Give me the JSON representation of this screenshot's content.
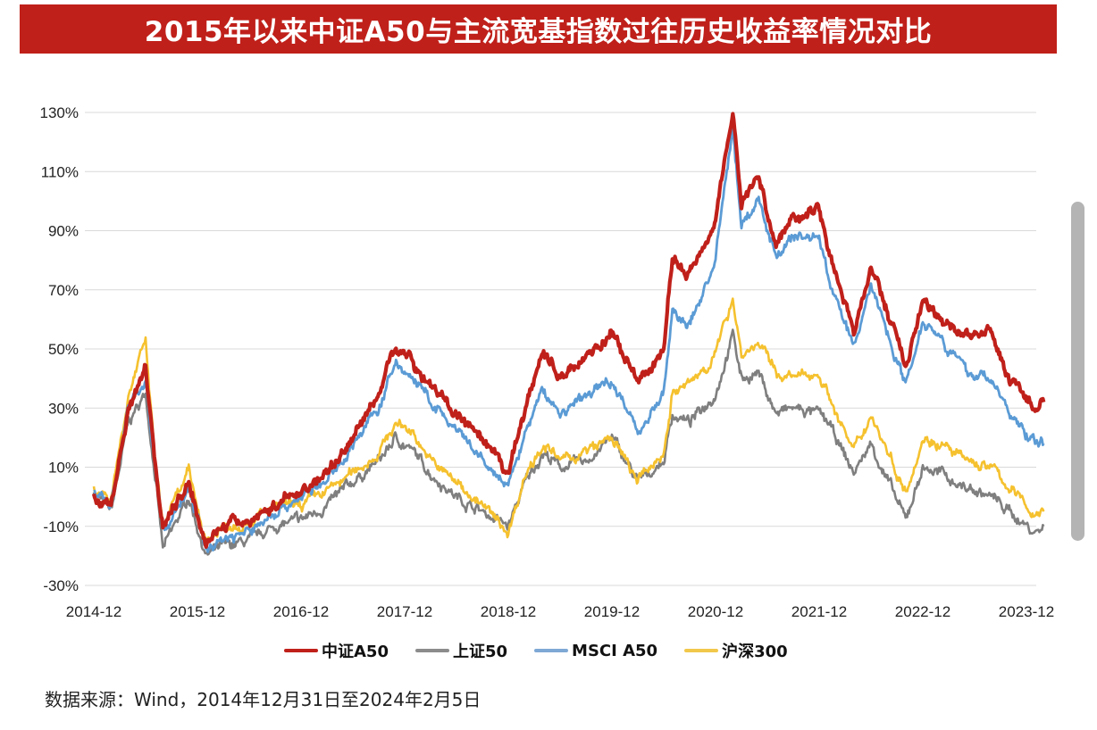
{
  "title": "2015年以来中证A50与主流宽基指数过往历史收益率情况对比",
  "source": "数据来源：Wind，2014年12月31日至2024年2月5日",
  "chart_data": {
    "type": "line",
    "title": "2015年以来中证A50与主流宽基指数过往历史收益率情况对比",
    "xlabel": "",
    "ylabel": "",
    "ylim": [
      -30,
      130
    ],
    "yticks": [
      "130%",
      "110%",
      "90%",
      "70%",
      "50%",
      "30%",
      "10%",
      "-10%",
      "-30%"
    ],
    "ytick_values": [
      130,
      110,
      90,
      70,
      50,
      30,
      10,
      -10,
      -30
    ],
    "xticks": [
      "2014-12",
      "2015-12",
      "2016-12",
      "2017-12",
      "2018-12",
      "2019-12",
      "2020-12",
      "2021-12",
      "2022-12",
      "2023-12"
    ],
    "grid": "horizontal",
    "legend": "bottom",
    "x": [
      "2014-12",
      "2015-02",
      "2015-04",
      "2015-06",
      "2015-07",
      "2015-08",
      "2015-11",
      "2016-01",
      "2016-03",
      "2016-06",
      "2016-09",
      "2016-12",
      "2017-03",
      "2017-06",
      "2017-09",
      "2017-11",
      "2018-01",
      "2018-03",
      "2018-06",
      "2018-09",
      "2018-12",
      "2019-02",
      "2019-04",
      "2019-06",
      "2019-09",
      "2019-12",
      "2020-03",
      "2020-06",
      "2020-07",
      "2020-09",
      "2020-12",
      "2021-02",
      "2021-03",
      "2021-05",
      "2021-07",
      "2021-09",
      "2021-12",
      "2022-01",
      "2022-04",
      "2022-06",
      "2022-10",
      "2022-12",
      "2023-02",
      "2023-05",
      "2023-08",
      "2023-10",
      "2024-01",
      "2024-02"
    ],
    "series": [
      {
        "name": "上证50",
        "color": "#7F7F7F",
        "values": [
          2,
          -5,
          25,
          35,
          10,
          -18,
          0,
          -20,
          -17,
          -15,
          -10,
          -8,
          -3,
          5,
          12,
          20,
          15,
          8,
          0,
          -5,
          -10,
          5,
          15,
          10,
          12,
          20,
          5,
          12,
          28,
          25,
          35,
          55,
          40,
          42,
          28,
          30,
          28,
          25,
          8,
          18,
          -8,
          10,
          8,
          3,
          0,
          -5,
          -12,
          -10
        ]
      },
      {
        "name": "沪深300",
        "color": "#F5C12E",
        "values": [
          3,
          0,
          35,
          52,
          15,
          -10,
          8,
          -15,
          -10,
          -8,
          -4,
          -3,
          2,
          8,
          15,
          25,
          22,
          12,
          5,
          -3,
          -12,
          8,
          18,
          12,
          15,
          20,
          5,
          15,
          35,
          38,
          48,
          68,
          48,
          52,
          42,
          40,
          42,
          35,
          15,
          28,
          2,
          20,
          18,
          12,
          10,
          3,
          -6,
          -5
        ]
      },
      {
        "name": "MSCI A50",
        "color": "#5B9BD5",
        "values": [
          3,
          -3,
          30,
          40,
          12,
          -12,
          3,
          -18,
          -14,
          -12,
          -5,
          0,
          5,
          18,
          30,
          45,
          40,
          32,
          22,
          12,
          3,
          22,
          36,
          28,
          34,
          40,
          22,
          35,
          62,
          58,
          80,
          125,
          92,
          100,
          82,
          88,
          88,
          75,
          50,
          72,
          38,
          60,
          55,
          42,
          40,
          28,
          18,
          18
        ]
      },
      {
        "name": "中证A50",
        "color": "#C0201A",
        "values": [
          0,
          -3,
          30,
          45,
          15,
          -10,
          5,
          -15,
          -10,
          -8,
          -3,
          2,
          8,
          20,
          35,
          52,
          45,
          38,
          28,
          18,
          8,
          30,
          50,
          40,
          48,
          55,
          38,
          50,
          80,
          75,
          95,
          130,
          100,
          108,
          85,
          95,
          98,
          85,
          55,
          78,
          45,
          65,
          60,
          55,
          55,
          40,
          30,
          32
        ]
      }
    ]
  }
}
